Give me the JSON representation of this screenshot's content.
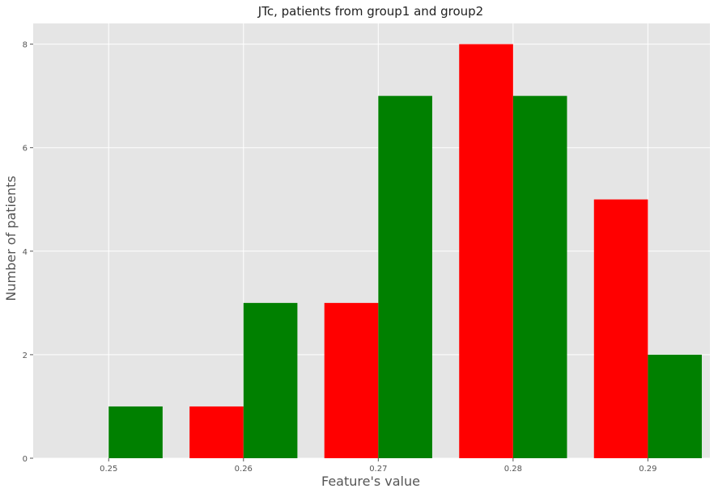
{
  "chart_data": {
    "type": "bar",
    "title": "JTc, patients from group1 and group2",
    "xlabel": "Feature's value",
    "ylabel": "Number of patients",
    "xlim": [
      0.2444,
      0.2946
    ],
    "ylim": [
      0,
      8.4
    ],
    "xticks": [
      0.25,
      0.26,
      0.27,
      0.28,
      0.29
    ],
    "xtick_labels": [
      "0.25",
      "0.26",
      "0.27",
      "0.28",
      "0.29"
    ],
    "yticks": [
      0,
      2,
      4,
      6,
      8
    ],
    "ytick_labels": [
      "0",
      "2",
      "4",
      "6",
      "8"
    ],
    "bin_width": 0.004,
    "grid": true,
    "background_color": "#e5e5e5",
    "series": [
      {
        "color": "#ff0000",
        "bins": [
          {
            "x": 0.246,
            "value": 0
          },
          {
            "x": 0.256,
            "value": 1
          },
          {
            "x": 0.266,
            "value": 3
          },
          {
            "x": 0.276,
            "value": 8
          },
          {
            "x": 0.286,
            "value": 5
          }
        ]
      },
      {
        "color": "#008000",
        "bins": [
          {
            "x": 0.25,
            "value": 1
          },
          {
            "x": 0.26,
            "value": 3
          },
          {
            "x": 0.27,
            "value": 7
          },
          {
            "x": 0.28,
            "value": 7
          },
          {
            "x": 0.29,
            "value": 2
          }
        ]
      }
    ]
  }
}
